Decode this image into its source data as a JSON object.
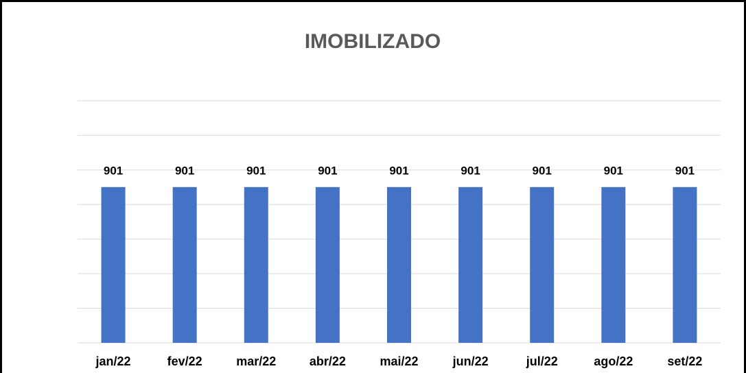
{
  "chart_data": {
    "type": "bar",
    "title": "IMOBILIZADO",
    "categories": [
      "jan/22",
      "fev/22",
      "mar/22",
      "abr/22",
      "mai/22",
      "jun/22",
      "jul/22",
      "ago/22",
      "set/22"
    ],
    "values": [
      901,
      901,
      901,
      901,
      901,
      901,
      901,
      901,
      901
    ],
    "color": "#4472c4",
    "ylim": [
      0,
      1400
    ],
    "yticks": [
      0,
      200,
      400,
      600,
      800,
      1000,
      1200,
      1400
    ],
    "grid": true
  }
}
